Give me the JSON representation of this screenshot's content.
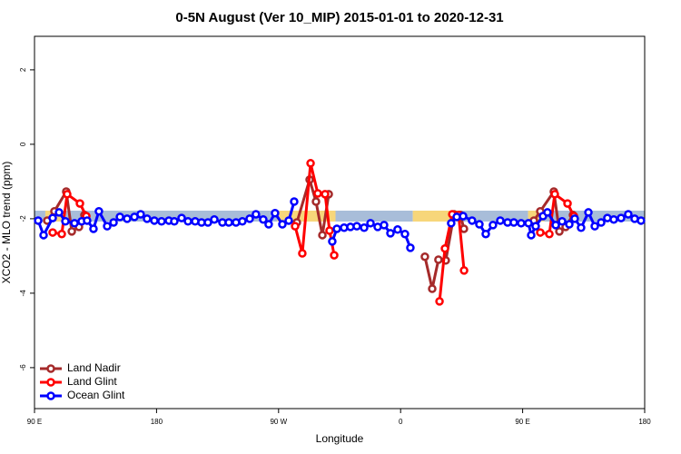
{
  "chart_data": {
    "type": "line",
    "title": "0-5N August (Ver 10_MIP)   2015-01-01 to 2020-12-31",
    "x_label": "Longitude",
    "y_label": "XCO2 - MLO trend (ppm)",
    "xlim": [
      90,
      540
    ],
    "ylim": [
      -7.1,
      2.9
    ],
    "xticks": [
      {
        "value": 90,
        "label": "90 E"
      },
      180,
      {
        "value": 270,
        "label": "90 W"
      },
      {
        "value": 360,
        "label": "0"
      },
      {
        "value": 450,
        "label": "90 E"
      },
      {
        "value": 540,
        "label": "180"
      }
    ],
    "yticks": [
      -6,
      -4,
      -2,
      0,
      2
    ],
    "legend": "bottom-left",
    "band": {
      "y": -1.93,
      "segments": [
        {
          "from": 90,
          "to": 98,
          "color": "#a8bdd9"
        },
        {
          "from": 98,
          "to": 113,
          "color": "#f7d67a"
        },
        {
          "from": 113,
          "to": 269,
          "color": "#a8bdd9"
        },
        {
          "from": 269,
          "to": 312,
          "color": "#f7d67a"
        },
        {
          "from": 312,
          "to": 369,
          "color": "#a8bdd9"
        },
        {
          "from": 369,
          "to": 403,
          "color": "#f7d67a"
        },
        {
          "from": 403,
          "to": 454,
          "color": "#a8bdd9"
        },
        {
          "from": 454,
          "to": 466,
          "color": "#f7d67a"
        },
        {
          "from": 466,
          "to": 540,
          "color": "#a8bdd9"
        }
      ]
    },
    "series": [
      {
        "name": "Land Nadir",
        "color": "#a52a2a",
        "x": [
          99.4,
          104.7,
          113.4,
          117.5,
          122.8,
          126.8,
          null,
          283.5,
          292.9,
          297.6,
          302.3,
          307,
          null,
          377.9,
          383.3,
          387.9,
          393.3,
          399.4,
          404.1,
          406.7,
          null,
          458.3,
          463,
          473,
          477.1,
          481.7,
          487.1
        ],
        "values": [
          -2.05,
          -1.8,
          -1.27,
          -2.34,
          -2.22,
          -1.9,
          null,
          -2.1,
          -0.95,
          -1.54,
          -2.44,
          -1.34,
          null,
          -3.02,
          -3.88,
          -3.1,
          -3.12,
          -1.88,
          -1.9,
          -2.27,
          null,
          -2.05,
          -1.8,
          -1.27,
          -2.34,
          -2.22,
          -1.9
        ]
      },
      {
        "name": "Land Glint",
        "color": "#ff0000",
        "x": [
          103.4,
          110.1,
          114.1,
          123.5,
          128.2,
          null,
          282.2,
          287.5,
          293.6,
          298.9,
          304.3,
          307.6,
          311,
          null,
          388.7,
          392.7,
          398.1,
          402.8,
          406.8,
          null,
          463,
          469.7,
          473.7,
          483.1,
          487.8
        ],
        "values": [
          -2.37,
          -2.41,
          -1.34,
          -1.59,
          -1.93,
          null,
          -2.2,
          -2.93,
          -0.51,
          -1.32,
          -1.34,
          -2.32,
          -2.98,
          null,
          -4.22,
          -2.8,
          -1.88,
          -1.9,
          -3.39,
          null,
          -2.37,
          -2.41,
          -1.34,
          -1.59,
          -1.93
        ]
      },
      {
        "name": "Ocean Glint",
        "color": "#0000ff",
        "x": [
          92.7,
          96.7,
          103.4,
          108.1,
          112.8,
          119.5,
          124.8,
          128.8,
          133.5,
          137.5,
          143.6,
          148.3,
          153,
          158.3,
          163.7,
          168.3,
          173,
          178.4,
          183.7,
          189.1,
          193.1,
          198.5,
          203.2,
          208.5,
          213.2,
          217.9,
          222.6,
          228.6,
          233.3,
          238.6,
          243.3,
          248.7,
          253.3,
          258.7,
          262.7,
          267.4,
          272.8,
          277.5,
          281.5,
          null,
          309.6,
          313,
          318.3,
          323,
          327.7,
          333.1,
          337.8,
          343.1,
          347.8,
          352.5,
          357.8,
          363.2,
          367.2,
          null,
          397.3,
          401.4,
          406.1,
          412.7,
          418.1,
          422.8,
          428.1,
          433.5,
          438.9,
          443.5,
          448.9,
          454.3,
          456.3,
          459.6,
          465,
          468.3,
          474.4,
          479.1,
          484.4,
          488.4,
          493.1,
          498.5,
          503.2,
          507.9,
          512.5,
          517.2,
          522.6,
          527.9,
          532.6,
          537.3
        ],
        "values": [
          -2.05,
          -2.44,
          -1.98,
          -1.83,
          -2.07,
          -2.12,
          -2.07,
          -2.05,
          -2.27,
          -1.8,
          -2.2,
          -2.1,
          -1.95,
          -2.0,
          -1.95,
          -1.88,
          -2.0,
          -2.05,
          -2.07,
          -2.05,
          -2.07,
          -1.98,
          -2.07,
          -2.07,
          -2.1,
          -2.1,
          -2.02,
          -2.1,
          -2.1,
          -2.1,
          -2.07,
          -2.0,
          -1.88,
          -2.02,
          -2.15,
          -1.85,
          -2.15,
          -2.05,
          -1.54,
          null,
          -2.61,
          -2.27,
          -2.24,
          -2.22,
          -2.2,
          -2.24,
          -2.12,
          -2.22,
          -2.17,
          -2.39,
          -2.29,
          -2.41,
          -2.78,
          null,
          -2.12,
          -1.95,
          -1.93,
          -2.05,
          -2.15,
          -2.41,
          -2.17,
          -2.05,
          -2.1,
          -2.1,
          -2.12,
          -2.12,
          -2.44,
          -2.2,
          -1.93,
          -1.83,
          -2.17,
          -2.07,
          -2.15,
          -2.0,
          -2.24,
          -1.83,
          -2.2,
          -2.1,
          -1.98,
          -2.02,
          -1.98,
          -1.88,
          -2.0,
          -2.05
        ]
      }
    ]
  }
}
